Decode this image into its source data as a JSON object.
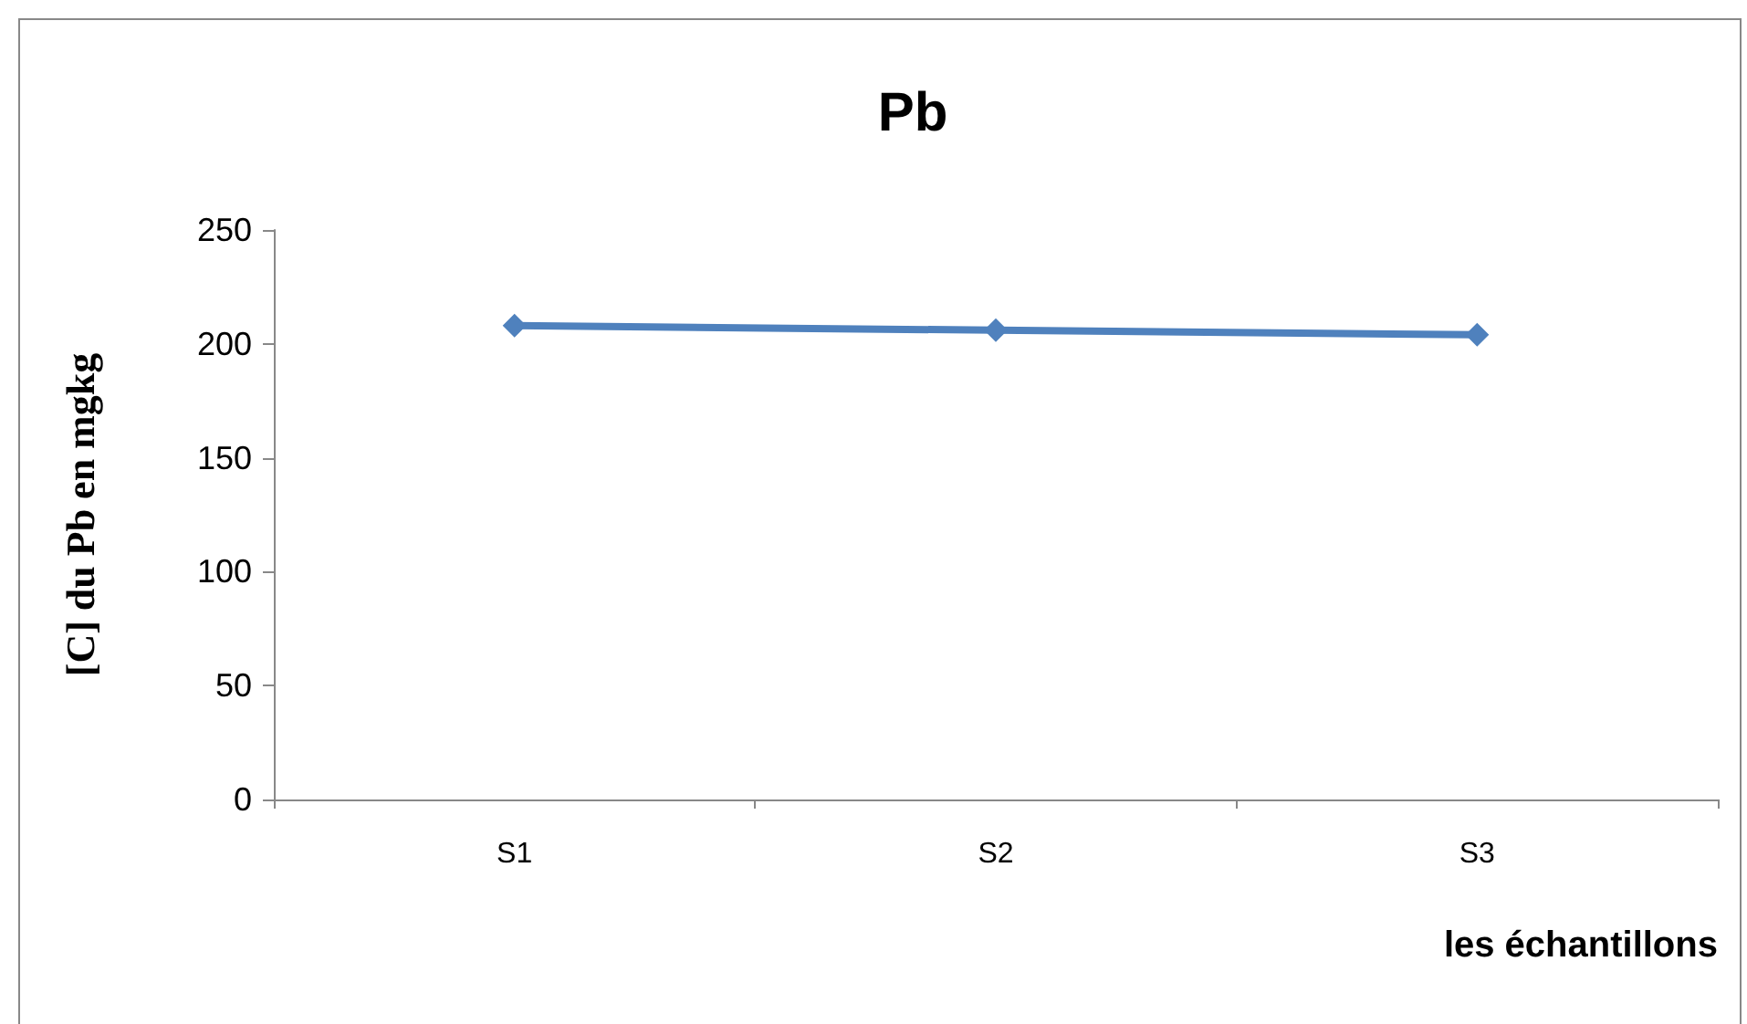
{
  "chart_data": {
    "type": "line",
    "title": "Pb",
    "xlabel": "les échantillons",
    "ylabel": "[C] du Pb en mgkg",
    "categories": [
      "S1",
      "S2",
      "S3"
    ],
    "series": [
      {
        "color": "#4f81bd",
        "values": [
          208,
          206,
          204
        ]
      }
    ],
    "ylim": [
      0,
      250
    ],
    "yticks": [
      0,
      50,
      100,
      150,
      200,
      250
    ],
    "grid": false,
    "marker": "diamond",
    "line_style": "solid"
  }
}
